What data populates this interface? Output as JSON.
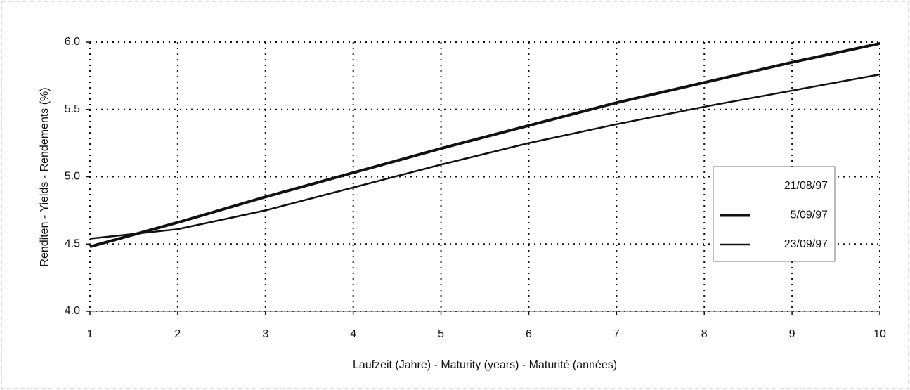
{
  "chart_data": {
    "type": "line",
    "xlabel": "Laufzeit (Jahre) - Maturity (years) - Maturité (années)",
    "ylabel": "Renditen - Yields - Rendements (%)",
    "x": [
      1,
      2,
      3,
      4,
      5,
      6,
      7,
      8,
      9,
      10
    ],
    "series": [
      {
        "name": "21/08/97",
        "color": "#111111",
        "width": 2,
        "values": [
          null,
          null,
          null,
          null,
          null,
          null,
          null,
          null,
          null,
          null
        ]
      },
      {
        "name": "5/09/97",
        "color": "#111111",
        "width": 4,
        "values": [
          4.48,
          4.66,
          4.85,
          5.03,
          5.21,
          5.38,
          5.55,
          5.7,
          5.85,
          5.99
        ]
      },
      {
        "name": "23/09/97",
        "color": "#111111",
        "width": 2.5,
        "values": [
          4.54,
          4.61,
          4.75,
          4.92,
          5.09,
          5.25,
          5.39,
          5.52,
          5.64,
          5.76
        ]
      }
    ],
    "xlim": [
      1,
      10
    ],
    "xticks": [
      1,
      2,
      3,
      4,
      5,
      6,
      7,
      8,
      9,
      10
    ],
    "ylim": [
      4,
      6
    ],
    "yticks": [
      {
        "value": 4,
        "label": "4.0"
      },
      {
        "value": 4.5,
        "label": "4.5"
      },
      {
        "value": 5,
        "label": "5.0"
      },
      {
        "value": 5.5,
        "label": "5.5"
      },
      {
        "value": 6,
        "label": "6.0"
      }
    ],
    "grid": true,
    "legend": "right"
  }
}
